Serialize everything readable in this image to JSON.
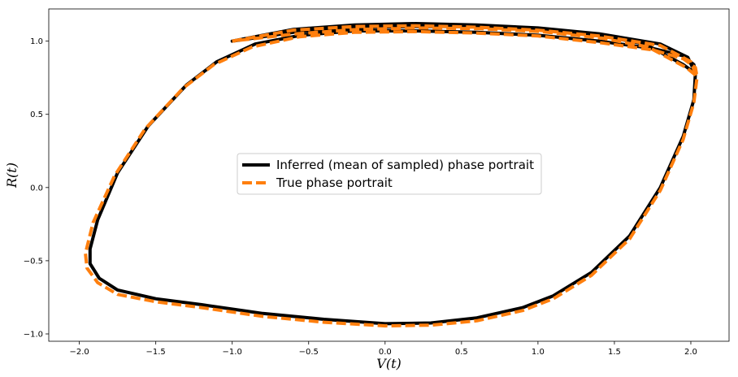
{
  "chart_data": {
    "type": "line",
    "title": "",
    "xlabel": "V(t)",
    "ylabel": "R(t)",
    "xlim": [
      -2.2,
      2.25
    ],
    "ylim": [
      -1.05,
      1.22
    ],
    "xticks": [
      -2.0,
      -1.5,
      -1.0,
      -0.5,
      0.0,
      0.5,
      1.0,
      1.5,
      2.0
    ],
    "yticks": [
      -1.0,
      -0.5,
      0.0,
      0.5,
      1.0
    ],
    "xtick_labels": [
      "−2.0",
      "−1.5",
      "−1.0",
      "−0.5",
      "0.0",
      "0.5",
      "1.0",
      "1.5",
      "2.0"
    ],
    "ytick_labels": [
      "−1.0",
      "−0.5",
      "0.0",
      "0.5",
      "1.0"
    ],
    "grid": false,
    "legend_position": "center",
    "series": [
      {
        "name": "Inferred (mean of sampled) phase portrait",
        "color": "#000000",
        "style": "solid",
        "x": [
          -1.0,
          -0.6,
          -0.2,
          0.2,
          0.6,
          1.0,
          1.4,
          1.8,
          1.98,
          2.03,
          2.02,
          1.95,
          1.8,
          1.6,
          1.35,
          1.1,
          0.9,
          0.6,
          0.3,
          0.0,
          -0.4,
          -0.8,
          -1.2,
          -1.5,
          -1.75,
          -1.87,
          -1.93,
          -1.93,
          -1.88,
          -1.75,
          -1.55,
          -1.3,
          -1.1,
          -0.85,
          -0.55,
          -0.2,
          0.2,
          0.6,
          1.0,
          1.4,
          1.75,
          1.95,
          2.02,
          2.03,
          1.95,
          1.7,
          1.4,
          1.0,
          0.6,
          0.2,
          -0.2,
          -0.6,
          -1.0
        ],
        "y": [
          1.0,
          1.08,
          1.11,
          1.12,
          1.11,
          1.09,
          1.05,
          0.98,
          0.89,
          0.78,
          0.6,
          0.35,
          0.0,
          -0.33,
          -0.58,
          -0.74,
          -0.82,
          -0.89,
          -0.925,
          -0.93,
          -0.9,
          -0.86,
          -0.8,
          -0.76,
          -0.7,
          -0.62,
          -0.52,
          -0.42,
          -0.22,
          0.1,
          0.42,
          0.7,
          0.86,
          0.98,
          1.04,
          1.07,
          1.07,
          1.06,
          1.04,
          1.0,
          0.95,
          0.9,
          0.84,
          0.78,
          0.84,
          0.98,
          1.04,
          1.08,
          1.1,
          1.1,
          1.09,
          1.06,
          1.0
        ]
      },
      {
        "name": "True phase portrait",
        "color": "#ff7f0e",
        "style": "dashed",
        "x": [
          -1.0,
          -0.6,
          -0.2,
          0.2,
          0.6,
          1.0,
          1.4,
          1.8,
          2.0,
          2.04,
          2.02,
          1.95,
          1.8,
          1.6,
          1.35,
          1.1,
          0.9,
          0.6,
          0.3,
          0.0,
          -0.4,
          -0.8,
          -1.2,
          -1.5,
          -1.75,
          -1.88,
          -1.95,
          -1.96,
          -1.91,
          -1.77,
          -1.57,
          -1.32,
          -1.12,
          -0.87,
          -0.56,
          -0.2,
          0.2,
          0.6,
          1.0,
          1.4,
          1.75,
          1.95,
          2.03,
          2.04,
          1.97,
          1.72,
          1.42,
          1.02,
          0.62,
          0.22,
          -0.18,
          -0.58,
          -1.0
        ],
        "y": [
          1.0,
          1.075,
          1.1,
          1.105,
          1.095,
          1.075,
          1.035,
          0.97,
          0.86,
          0.75,
          0.58,
          0.33,
          -0.02,
          -0.35,
          -0.6,
          -0.76,
          -0.84,
          -0.91,
          -0.94,
          -0.945,
          -0.92,
          -0.88,
          -0.82,
          -0.78,
          -0.73,
          -0.65,
          -0.55,
          -0.45,
          -0.24,
          0.08,
          0.4,
          0.68,
          0.84,
          0.96,
          1.03,
          1.06,
          1.065,
          1.055,
          1.035,
          0.99,
          0.94,
          0.88,
          0.82,
          0.76,
          0.82,
          0.96,
          1.02,
          1.065,
          1.085,
          1.09,
          1.08,
          1.05,
          1.0
        ]
      }
    ]
  }
}
